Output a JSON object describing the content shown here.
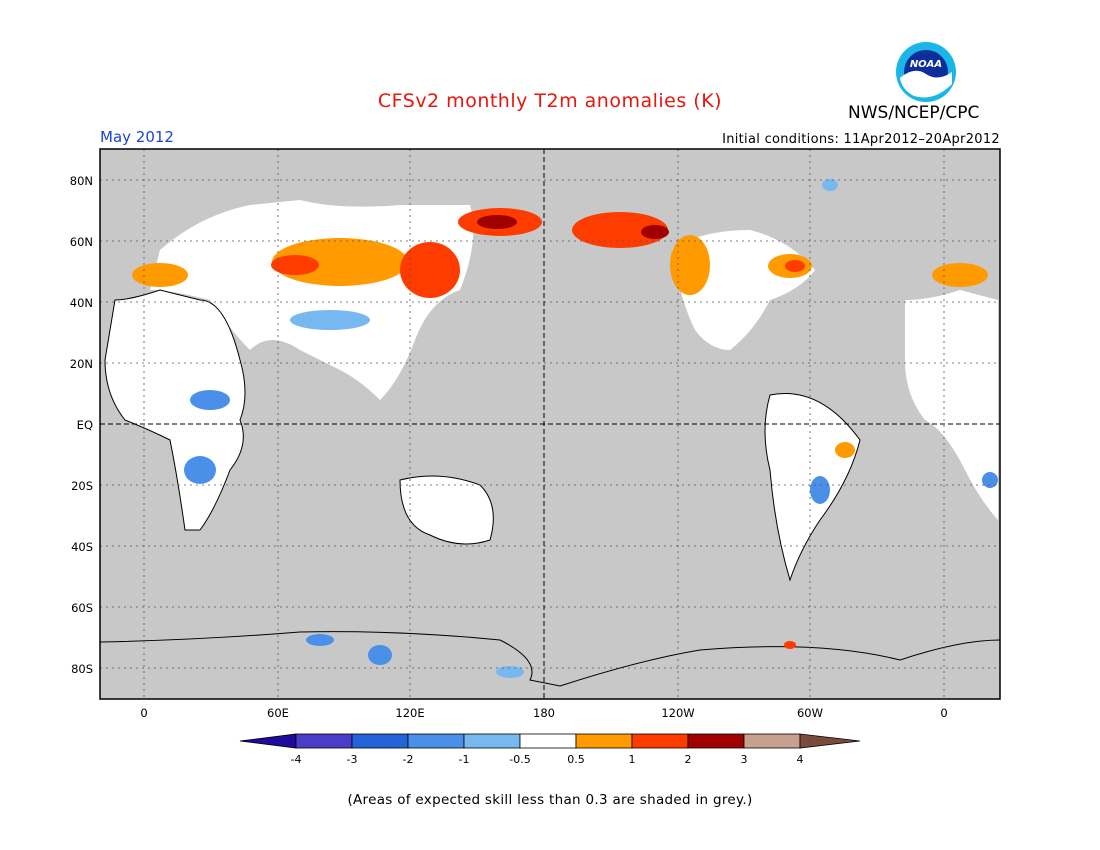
{
  "title": "CFSv2 monthly T2m anomalies (K)",
  "agency": "NWS/NCEP/CPC",
  "logo_text": "NOAA",
  "month": "May 2012",
  "initial_conditions": "Initial conditions: 11Apr2012–20Apr2012",
  "footnote": "(Areas of expected skill less than 0.3 are shaded in grey.)",
  "map": {
    "lat_labels": [
      "80N",
      "60N",
      "40N",
      "20N",
      "EQ",
      "20S",
      "40S",
      "60S",
      "80S"
    ],
    "lon_labels": [
      "0",
      "60E",
      "120E",
      "180",
      "120W",
      "60W",
      "0"
    ],
    "background_color": "#c8c8c8"
  },
  "colorbar": {
    "tick_labels": [
      "-4",
      "-3",
      "-2",
      "-1",
      "-0.5",
      "0.5",
      "1",
      "2",
      "3",
      "4"
    ],
    "colors": [
      "#1e0b9c",
      "#4a3ec8",
      "#2464d8",
      "#4a90e8",
      "#78b8f0",
      "#ffffff",
      "#ff9a00",
      "#ff3c00",
      "#a00000",
      "#c8a090",
      "#7a4a3a"
    ]
  }
}
